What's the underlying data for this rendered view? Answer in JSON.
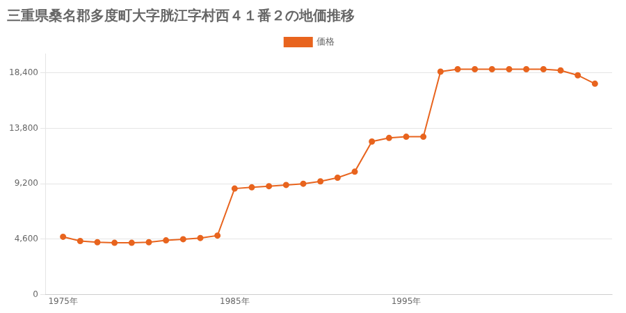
{
  "chart_data": {
    "type": "line",
    "title": "三重県桑名郡多度町大字胱江字村西４１番２の地価推移",
    "x": [
      1975,
      1976,
      1977,
      1978,
      1979,
      1980,
      1981,
      1982,
      1983,
      1984,
      1985,
      1986,
      1987,
      1988,
      1989,
      1990,
      1991,
      1992,
      1993,
      1994,
      1995,
      1996,
      1997,
      1998,
      1999,
      2000,
      2001,
      2002,
      2003,
      2004,
      2005,
      2006
    ],
    "series": [
      {
        "name": "価格",
        "color": "#e8641e",
        "values": [
          4800,
          4450,
          4350,
          4300,
          4300,
          4350,
          4500,
          4600,
          4700,
          4900,
          8800,
          8900,
          9000,
          9100,
          9200,
          9400,
          9700,
          10200,
          12700,
          13000,
          13100,
          13100,
          18500,
          18700,
          18700,
          18700,
          18700,
          18700,
          18700,
          18600,
          18200,
          17500
        ]
      }
    ],
    "xlim": [
      1974,
      2007
    ],
    "xticks": [
      {
        "value": 1975,
        "label": "1975年"
      },
      {
        "value": 1985,
        "label": "1985年"
      },
      {
        "value": 1995,
        "label": "1995年"
      }
    ],
    "ylim": [
      0,
      20000
    ],
    "yticks": [
      0,
      {
        "value": 4600,
        "label": "4,600"
      },
      {
        "value": 9200,
        "label": "9,200"
      },
      {
        "value": 13800,
        "label": "13,800"
      },
      {
        "value": 18400,
        "label": "18,400"
      }
    ],
    "grid": "y",
    "legend": "top",
    "marker": "circle"
  }
}
